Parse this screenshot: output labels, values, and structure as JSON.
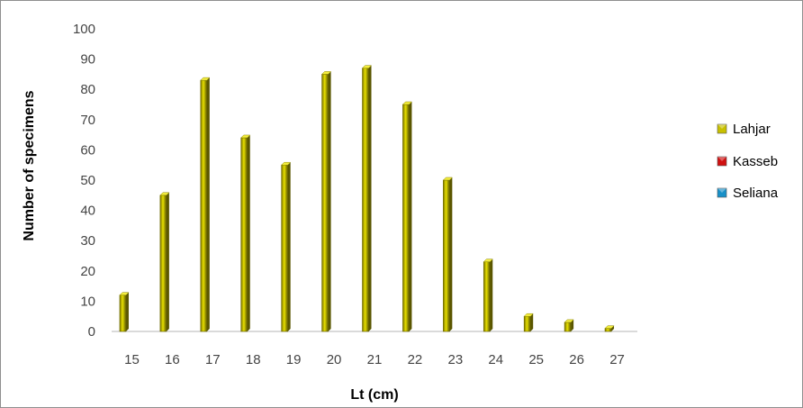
{
  "chart_data": {
    "type": "bar",
    "title": "",
    "xlabel": "Lt (cm)",
    "ylabel": "Number of specimens",
    "categories": [
      "15",
      "16",
      "17",
      "18",
      "19",
      "20",
      "21",
      "22",
      "23",
      "24",
      "25",
      "26",
      "27"
    ],
    "series": [
      {
        "name": "Lahjar",
        "color": "#c8c000",
        "values": [
          12,
          45,
          83,
          64,
          55,
          85,
          87,
          75,
          50,
          23,
          5,
          3,
          1
        ]
      },
      {
        "name": "Kasseb",
        "color": "#d01010",
        "values": [
          0,
          0,
          0,
          0,
          0,
          0,
          0,
          0,
          0,
          0,
          0,
          0,
          0
        ]
      },
      {
        "name": "Seliana",
        "color": "#1890c8",
        "values": [
          0,
          0,
          0,
          0,
          0,
          0,
          0,
          0,
          0,
          0,
          0,
          0,
          0
        ]
      }
    ],
    "ylim": [
      0,
      100
    ],
    "yticks": [
      0,
      10,
      20,
      30,
      40,
      50,
      60,
      70,
      80,
      90,
      100
    ],
    "grid": false,
    "legend": "right"
  }
}
